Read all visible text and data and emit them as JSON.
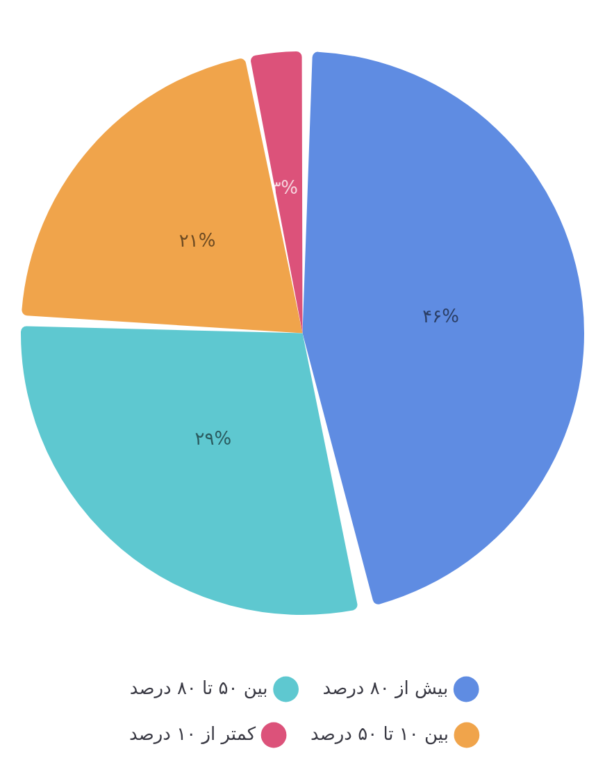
{
  "chart_data": {
    "type": "pie",
    "categories": [
      "بیش از ۸۰ درصد",
      "بین ۵۰ تا ۸۰ درصد",
      "بین ۱۰ تا ۵۰ درصد",
      "کمتر از ۱۰ درصد"
    ],
    "values": [
      46,
      29,
      21,
      3
    ],
    "colors": [
      "#5f8ce2",
      "#5ec8d0",
      "#f0a44b",
      "#dc527a"
    ],
    "value_labels": [
      "۴۶%",
      "۲۹%",
      "۲۱%",
      "۳%"
    ],
    "legend": "bottom"
  }
}
